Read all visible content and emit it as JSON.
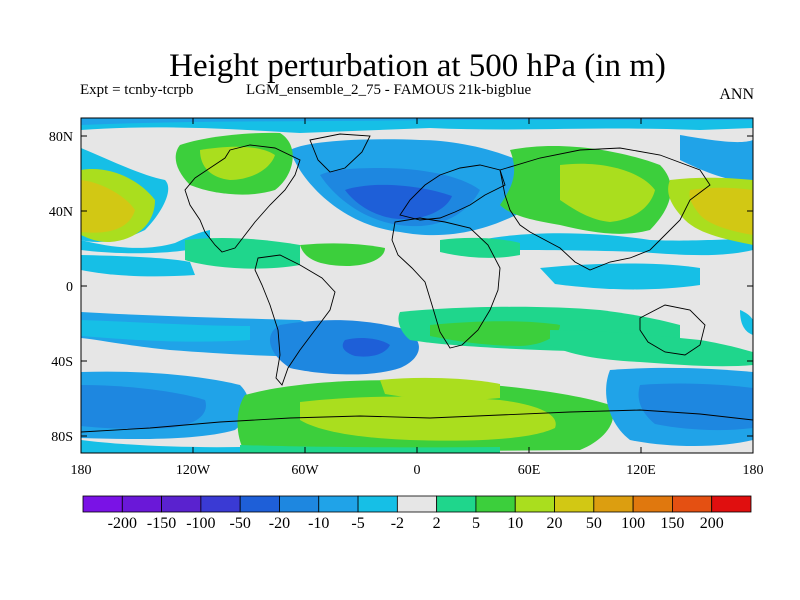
{
  "header": {
    "title": "Height perturbation at 500 hPa (in m)",
    "expt": "Expt = tcnby-tcrpb",
    "run": "LGM_ensemble_2_75 - FAMOUS 21k-bigblue",
    "season": "ANN"
  },
  "map": {
    "lat_labels": [
      "80N",
      "40N",
      "0",
      "40S",
      "80S"
    ],
    "lon_labels": [
      "180",
      "120W",
      "60W",
      "0",
      "60E",
      "120E",
      "180"
    ],
    "background_color": "#e6e6e6"
  },
  "colorbar": {
    "labels": [
      "-200",
      "-150",
      "-100",
      "-50",
      "-20",
      "-10",
      "-5",
      "-2",
      "2",
      "5",
      "10",
      "20",
      "50",
      "100",
      "150",
      "200"
    ],
    "colors": [
      "#7a12e6",
      "#6a18d8",
      "#5a22cf",
      "#3a3ad4",
      "#1e5fd8",
      "#1e87e0",
      "#20a3e8",
      "#16bfe6",
      "#e6e6e6",
      "#1fd68c",
      "#3ccf3c",
      "#aade1e",
      "#d2c814",
      "#dc9e10",
      "#e0780e",
      "#e45012",
      "#e00f0f"
    ]
  }
}
